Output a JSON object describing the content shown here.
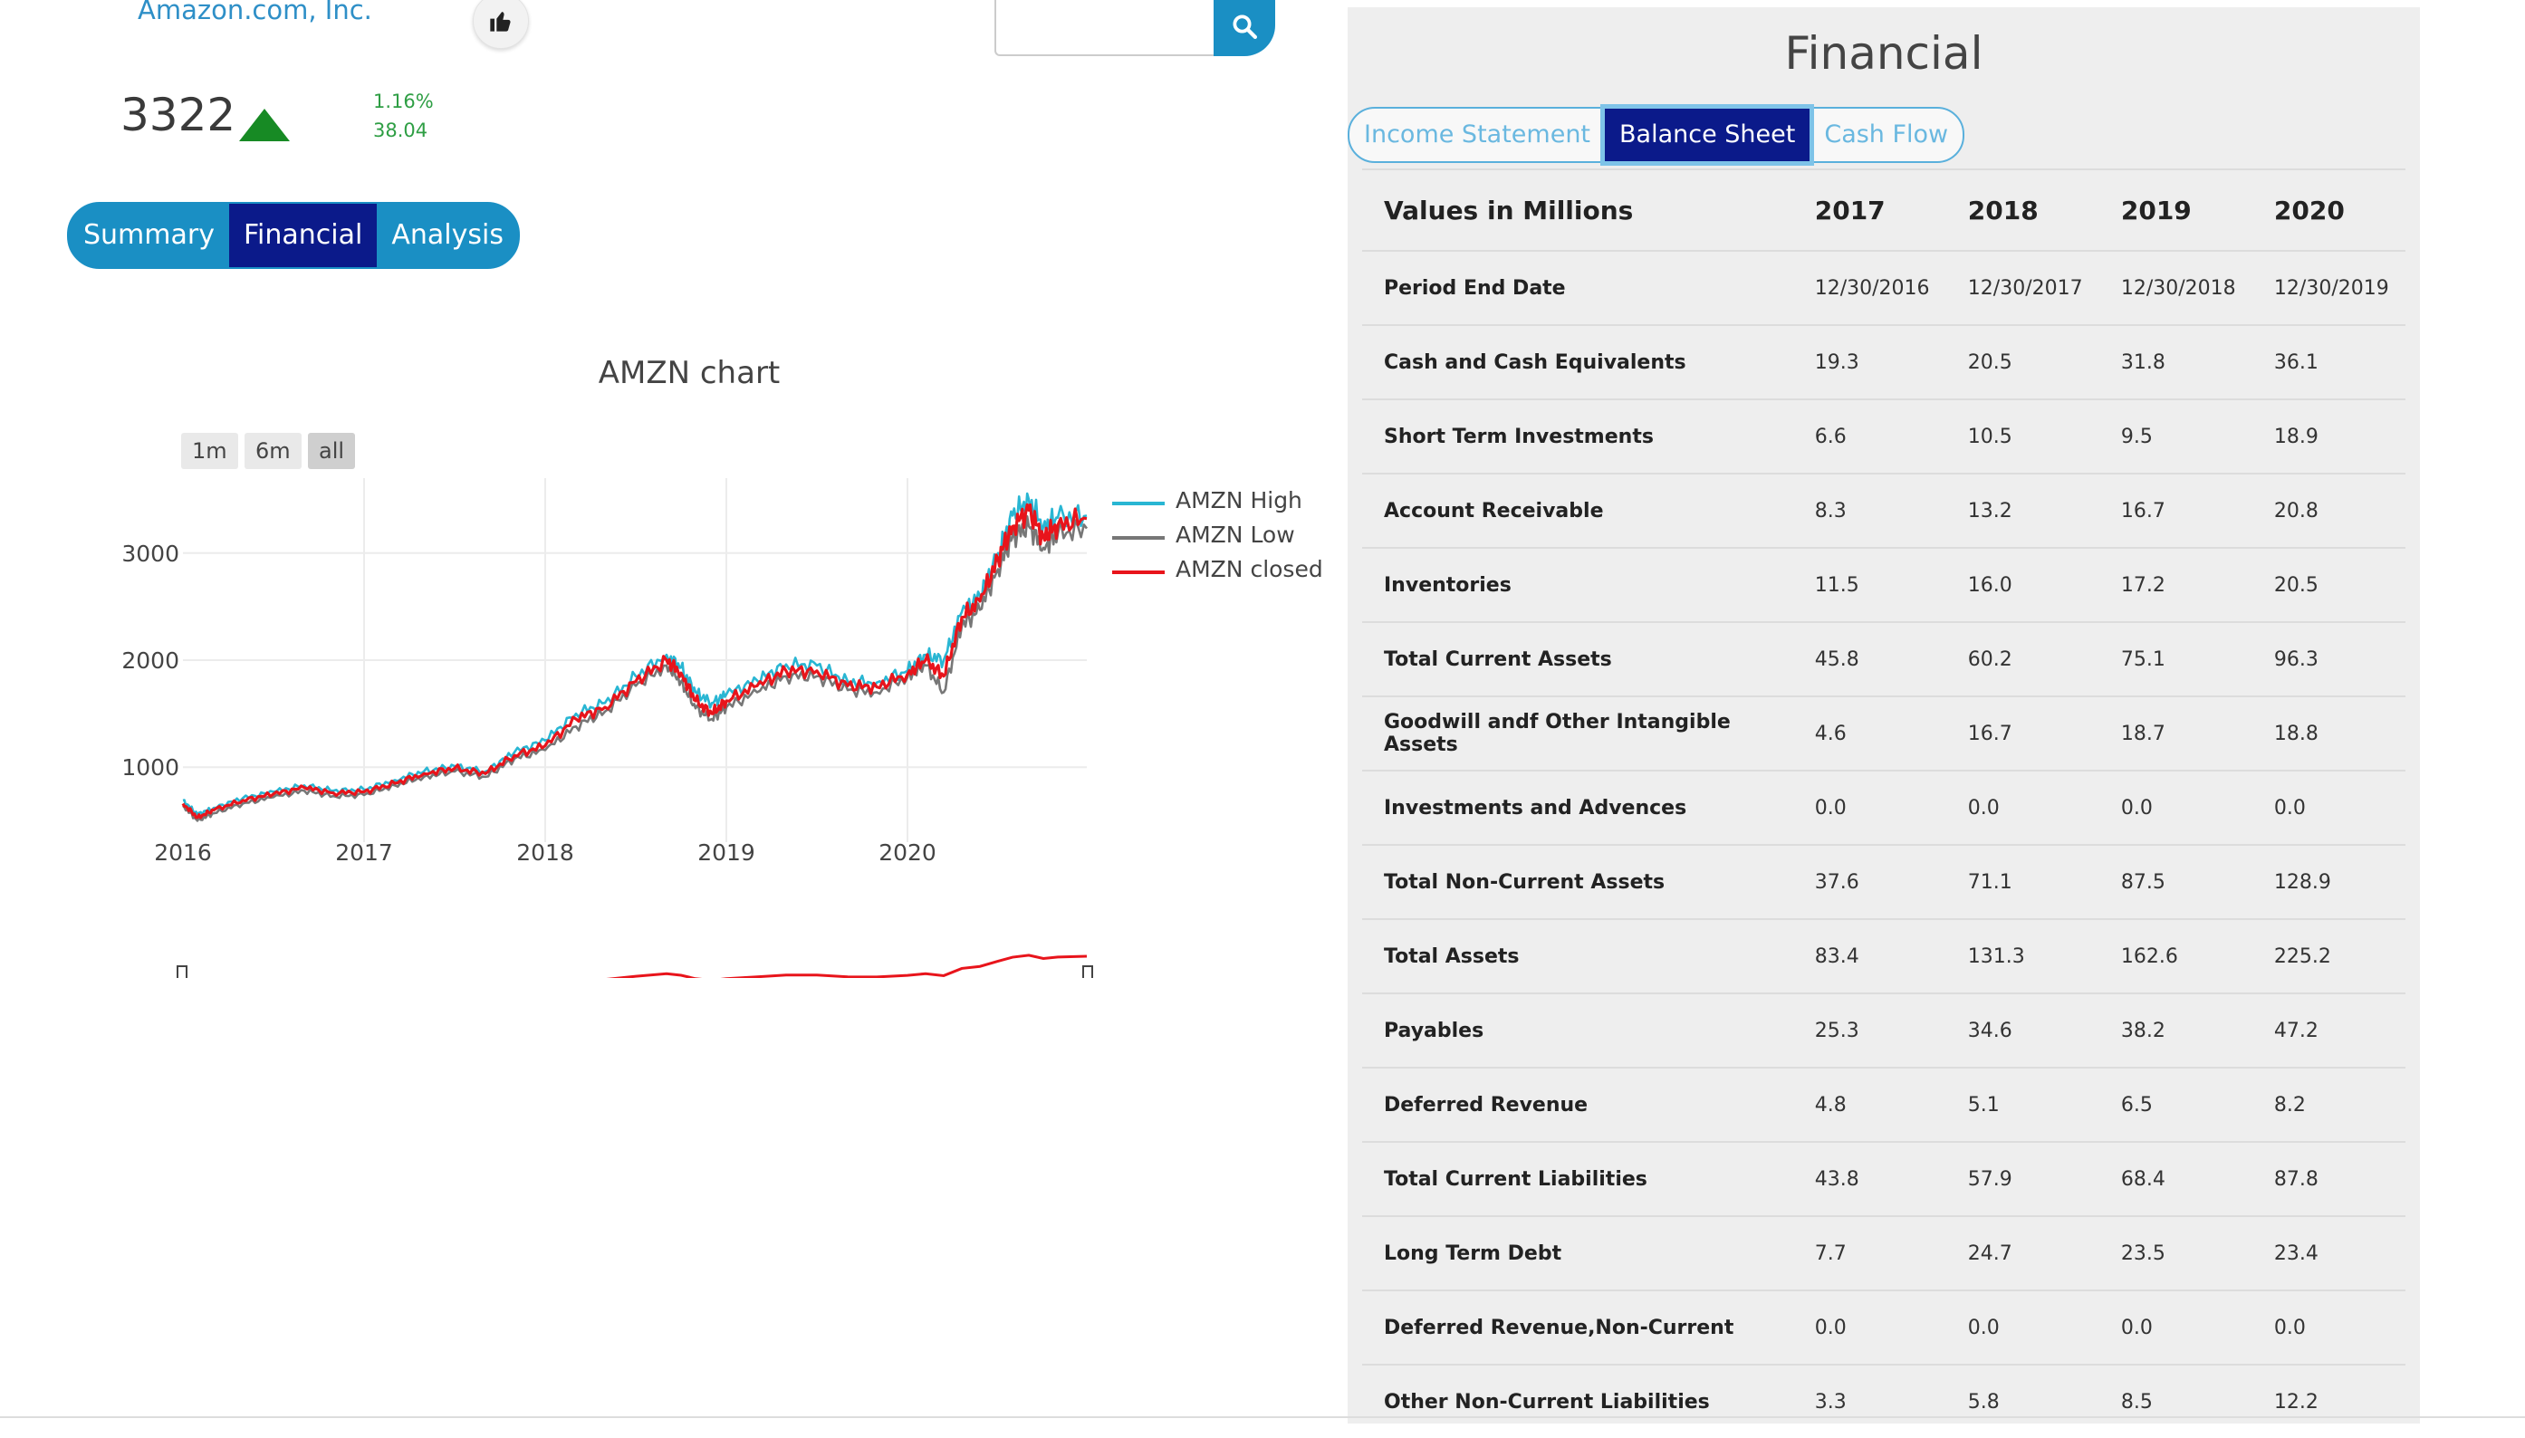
{
  "header": {
    "company_name": "Amazon.com, Inc.",
    "like_icon": "thumbs-up-icon",
    "search": {
      "value": "",
      "placeholder": "",
      "icon": "search-icon"
    }
  },
  "quote": {
    "price": "3322",
    "direction_icon": "triangle-up-icon",
    "change_percent": "1.16%",
    "change_value": "38.04",
    "up_color": "#178a24"
  },
  "view_tabs": [
    {
      "label": "Summary",
      "active": false
    },
    {
      "label": "Financial",
      "active": true
    },
    {
      "label": "Analysis",
      "active": false
    }
  ],
  "chart": {
    "title": "AMZN chart",
    "range_buttons": [
      {
        "label": "1m",
        "active": false
      },
      {
        "label": "6m",
        "active": false
      },
      {
        "label": "all",
        "active": true
      }
    ],
    "legend": [
      "AMZN High",
      "AMZN Low",
      "AMZN closed"
    ]
  },
  "chart_data": {
    "type": "line",
    "title": "AMZN chart",
    "xlabel": "",
    "ylabel": "",
    "x_ticks": [
      "2016",
      "2017",
      "2018",
      "2019",
      "2020"
    ],
    "y_ticks": [
      1000,
      2000,
      3000
    ],
    "xlim": [
      2016.0,
      2020.99
    ],
    "ylim": [
      300,
      3700
    ],
    "grid": true,
    "legend_placement": "top-right",
    "x": [
      2016.0,
      2016.08,
      2016.17,
      2016.33,
      2016.5,
      2016.67,
      2016.83,
      2017.0,
      2017.17,
      2017.33,
      2017.5,
      2017.67,
      2017.83,
      2018.0,
      2018.17,
      2018.33,
      2018.5,
      2018.67,
      2018.75,
      2018.83,
      2018.92,
      2019.0,
      2019.17,
      2019.33,
      2019.5,
      2019.67,
      2019.83,
      2020.0,
      2020.1,
      2020.2,
      2020.3,
      2020.4,
      2020.5,
      2020.58,
      2020.67,
      2020.75,
      2020.83,
      2020.99
    ],
    "series": [
      {
        "name": "AMZN High",
        "color": "#29b6d3",
        "values": [
          690,
          560,
          620,
          710,
          770,
          830,
          780,
          790,
          880,
          960,
          1010,
          960,
          1140,
          1250,
          1500,
          1600,
          1850,
          2050,
          1930,
          1700,
          1600,
          1680,
          1810,
          1960,
          1950,
          1800,
          1790,
          1900,
          2050,
          2000,
          2450,
          2600,
          3000,
          3350,
          3500,
          3250,
          3330,
          3350
        ]
      },
      {
        "name": "AMZN Low",
        "color": "#777777",
        "values": [
          640,
          500,
          570,
          660,
          720,
          780,
          730,
          740,
          830,
          910,
          960,
          910,
          1080,
          1160,
          1380,
          1520,
          1760,
          1950,
          1800,
          1550,
          1450,
          1560,
          1700,
          1850,
          1850,
          1720,
          1700,
          1840,
          1950,
          1700,
          2320,
          2470,
          2850,
          3150,
          3250,
          3050,
          3180,
          3230
        ]
      },
      {
        "name": "AMZN closed",
        "color": "#e8141b",
        "values": [
          660,
          530,
          600,
          690,
          750,
          810,
          760,
          770,
          850,
          940,
          990,
          940,
          1110,
          1200,
          1450,
          1560,
          1800,
          2000,
          1880,
          1620,
          1500,
          1620,
          1760,
          1900,
          1900,
          1760,
          1750,
          1870,
          2000,
          1850,
          2400,
          2550,
          2950,
          3250,
          3400,
          3150,
          3260,
          3322
        ]
      }
    ]
  },
  "financial": {
    "title": "Financial",
    "statement_tabs": [
      {
        "label": "Income Statement",
        "active": false
      },
      {
        "label": "Balance Sheet",
        "active": true
      },
      {
        "label": "Cash Flow",
        "active": false
      }
    ],
    "table": {
      "columns": [
        "Values in Millions",
        "2017",
        "2018",
        "2019",
        "2020"
      ],
      "rows": [
        [
          "Period End Date",
          "12/30/2016",
          "12/30/2017",
          "12/30/2018",
          "12/30/2019"
        ],
        [
          "Cash and Cash Equivalents",
          "19.3",
          "20.5",
          "31.8",
          "36.1"
        ],
        [
          "Short Term Investments",
          "6.6",
          "10.5",
          "9.5",
          "18.9"
        ],
        [
          "Account Receivable",
          "8.3",
          "13.2",
          "16.7",
          "20.8"
        ],
        [
          "Inventories",
          "11.5",
          "16.0",
          "17.2",
          "20.5"
        ],
        [
          "Total Current Assets",
          "45.8",
          "60.2",
          "75.1",
          "96.3"
        ],
        [
          "Goodwill andf Other Intangible Assets",
          "4.6",
          "16.7",
          "18.7",
          "18.8"
        ],
        [
          "Investments and Advences",
          "0.0",
          "0.0",
          "0.0",
          "0.0"
        ],
        [
          "Total Non-Current Assets",
          "37.6",
          "71.1",
          "87.5",
          "128.9"
        ],
        [
          "Total Assets",
          "83.4",
          "131.3",
          "162.6",
          "225.2"
        ],
        [
          "Payables",
          "25.3",
          "34.6",
          "38.2",
          "47.2"
        ],
        [
          "Deferred Revenue",
          "4.8",
          "5.1",
          "6.5",
          "8.2"
        ],
        [
          "Total Current Liabilities",
          "43.8",
          "57.9",
          "68.4",
          "87.8"
        ],
        [
          "Long Term Debt",
          "7.7",
          "24.7",
          "23.5",
          "23.4"
        ],
        [
          "Deferred Revenue,Non-Current",
          "0.0",
          "0.0",
          "0.0",
          "0.0"
        ],
        [
          "Other Non-Current Liabilities",
          "3.3",
          "5.8",
          "8.5",
          "12.2"
        ]
      ]
    }
  }
}
